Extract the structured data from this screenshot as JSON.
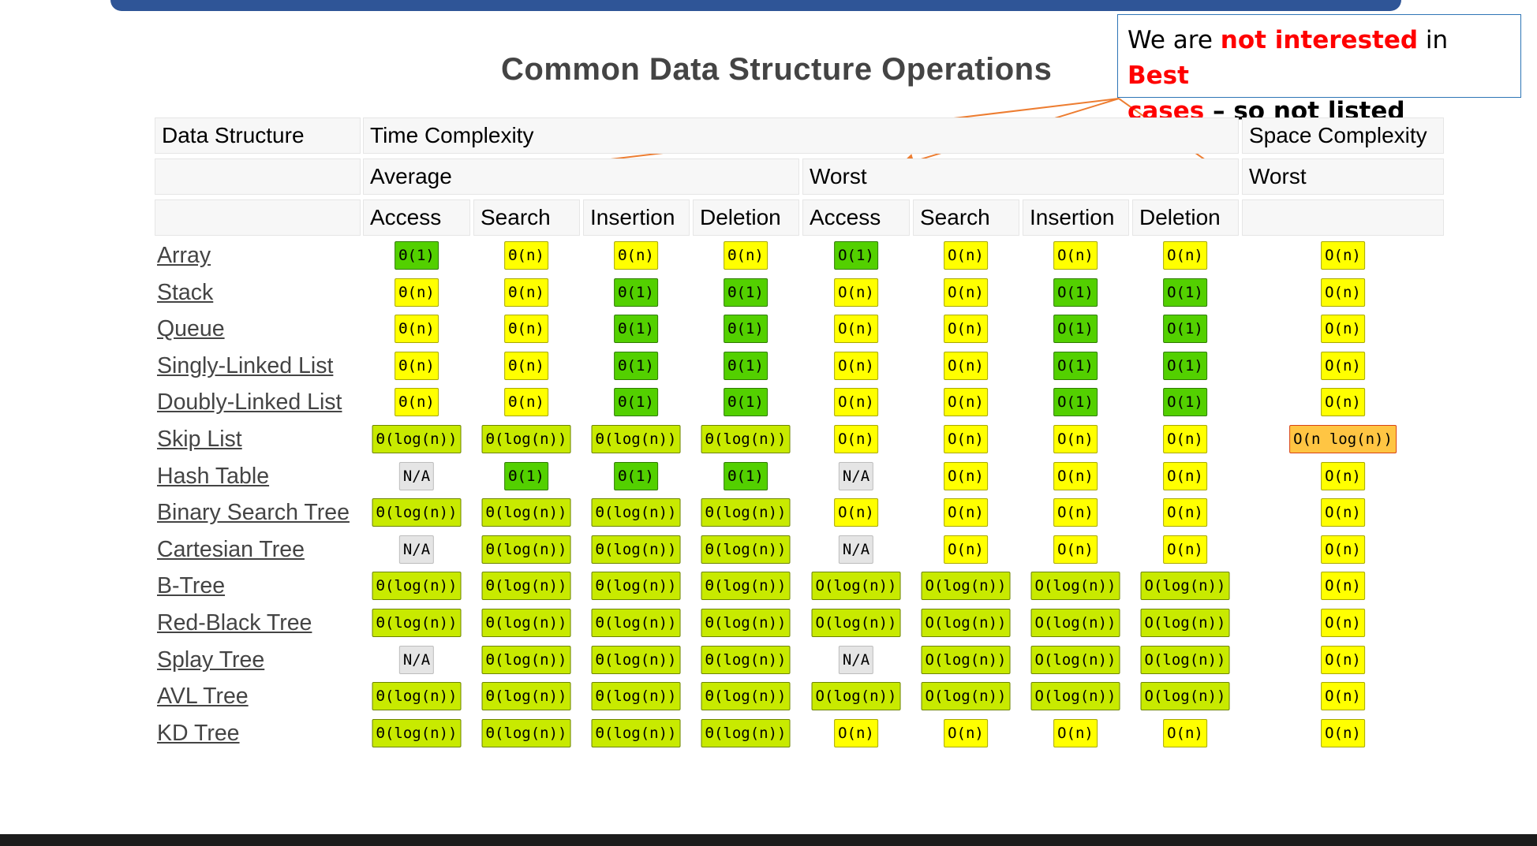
{
  "title": "Common Data Structure Operations",
  "callout": {
    "p1": "We are ",
    "p2": "not interested",
    "p3": " in ",
    "p4": "Best",
    "p5": "cases",
    "p6": " – so not listed"
  },
  "header": {
    "data_structure": "Data Structure",
    "time_complexity": "Time Complexity",
    "space_complexity": "Space Complexity",
    "average": "Average",
    "worst": "Worst",
    "space_worst": "Worst",
    "columns": [
      "Access",
      "Search",
      "Insertion",
      "Deletion",
      "Access",
      "Search",
      "Insertion",
      "Deletion"
    ]
  },
  "rows": [
    {
      "name": "Array",
      "cells": [
        [
          "Θ(1)",
          "green"
        ],
        [
          "Θ(n)",
          "yellow"
        ],
        [
          "Θ(n)",
          "yellow"
        ],
        [
          "Θ(n)",
          "yellow"
        ],
        [
          "O(1)",
          "green"
        ],
        [
          "O(n)",
          "yellow"
        ],
        [
          "O(n)",
          "yellow"
        ],
        [
          "O(n)",
          "yellow"
        ],
        [
          "O(n)",
          "yellow"
        ]
      ]
    },
    {
      "name": "Stack",
      "cells": [
        [
          "Θ(n)",
          "yellow"
        ],
        [
          "Θ(n)",
          "yellow"
        ],
        [
          "Θ(1)",
          "green"
        ],
        [
          "Θ(1)",
          "green"
        ],
        [
          "O(n)",
          "yellow"
        ],
        [
          "O(n)",
          "yellow"
        ],
        [
          "O(1)",
          "green"
        ],
        [
          "O(1)",
          "green"
        ],
        [
          "O(n)",
          "yellow"
        ]
      ]
    },
    {
      "name": "Queue",
      "cells": [
        [
          "Θ(n)",
          "yellow"
        ],
        [
          "Θ(n)",
          "yellow"
        ],
        [
          "Θ(1)",
          "green"
        ],
        [
          "Θ(1)",
          "green"
        ],
        [
          "O(n)",
          "yellow"
        ],
        [
          "O(n)",
          "yellow"
        ],
        [
          "O(1)",
          "green"
        ],
        [
          "O(1)",
          "green"
        ],
        [
          "O(n)",
          "yellow"
        ]
      ]
    },
    {
      "name": "Singly-Linked List",
      "cells": [
        [
          "Θ(n)",
          "yellow"
        ],
        [
          "Θ(n)",
          "yellow"
        ],
        [
          "Θ(1)",
          "green"
        ],
        [
          "Θ(1)",
          "green"
        ],
        [
          "O(n)",
          "yellow"
        ],
        [
          "O(n)",
          "yellow"
        ],
        [
          "O(1)",
          "green"
        ],
        [
          "O(1)",
          "green"
        ],
        [
          "O(n)",
          "yellow"
        ]
      ]
    },
    {
      "name": "Doubly-Linked List",
      "cells": [
        [
          "Θ(n)",
          "yellow"
        ],
        [
          "Θ(n)",
          "yellow"
        ],
        [
          "Θ(1)",
          "green"
        ],
        [
          "Θ(1)",
          "green"
        ],
        [
          "O(n)",
          "yellow"
        ],
        [
          "O(n)",
          "yellow"
        ],
        [
          "O(1)",
          "green"
        ],
        [
          "O(1)",
          "green"
        ],
        [
          "O(n)",
          "yellow"
        ]
      ]
    },
    {
      "name": "Skip List",
      "cells": [
        [
          "Θ(log(n))",
          "yg"
        ],
        [
          "Θ(log(n))",
          "yg"
        ],
        [
          "Θ(log(n))",
          "yg"
        ],
        [
          "Θ(log(n))",
          "yg"
        ],
        [
          "O(n)",
          "yellow"
        ],
        [
          "O(n)",
          "yellow"
        ],
        [
          "O(n)",
          "yellow"
        ],
        [
          "O(n)",
          "yellow"
        ],
        [
          "O(n log(n))",
          "orange"
        ]
      ]
    },
    {
      "name": "Hash Table",
      "cells": [
        [
          "N/A",
          "gray"
        ],
        [
          "Θ(1)",
          "green"
        ],
        [
          "Θ(1)",
          "green"
        ],
        [
          "Θ(1)",
          "green"
        ],
        [
          "N/A",
          "gray"
        ],
        [
          "O(n)",
          "yellow"
        ],
        [
          "O(n)",
          "yellow"
        ],
        [
          "O(n)",
          "yellow"
        ],
        [
          "O(n)",
          "yellow"
        ]
      ]
    },
    {
      "name": "Binary Search Tree",
      "cells": [
        [
          "Θ(log(n))",
          "yg"
        ],
        [
          "Θ(log(n))",
          "yg"
        ],
        [
          "Θ(log(n))",
          "yg"
        ],
        [
          "Θ(log(n))",
          "yg"
        ],
        [
          "O(n)",
          "yellow"
        ],
        [
          "O(n)",
          "yellow"
        ],
        [
          "O(n)",
          "yellow"
        ],
        [
          "O(n)",
          "yellow"
        ],
        [
          "O(n)",
          "yellow"
        ]
      ]
    },
    {
      "name": "Cartesian Tree",
      "cells": [
        [
          "N/A",
          "gray"
        ],
        [
          "Θ(log(n))",
          "yg"
        ],
        [
          "Θ(log(n))",
          "yg"
        ],
        [
          "Θ(log(n))",
          "yg"
        ],
        [
          "N/A",
          "gray"
        ],
        [
          "O(n)",
          "yellow"
        ],
        [
          "O(n)",
          "yellow"
        ],
        [
          "O(n)",
          "yellow"
        ],
        [
          "O(n)",
          "yellow"
        ]
      ]
    },
    {
      "name": "B-Tree",
      "cells": [
        [
          "Θ(log(n))",
          "yg"
        ],
        [
          "Θ(log(n))",
          "yg"
        ],
        [
          "Θ(log(n))",
          "yg"
        ],
        [
          "Θ(log(n))",
          "yg"
        ],
        [
          "O(log(n))",
          "yg"
        ],
        [
          "O(log(n))",
          "yg"
        ],
        [
          "O(log(n))",
          "yg"
        ],
        [
          "O(log(n))",
          "yg"
        ],
        [
          "O(n)",
          "yellow"
        ]
      ]
    },
    {
      "name": "Red-Black Tree",
      "cells": [
        [
          "Θ(log(n))",
          "yg"
        ],
        [
          "Θ(log(n))",
          "yg"
        ],
        [
          "Θ(log(n))",
          "yg"
        ],
        [
          "Θ(log(n))",
          "yg"
        ],
        [
          "O(log(n))",
          "yg"
        ],
        [
          "O(log(n))",
          "yg"
        ],
        [
          "O(log(n))",
          "yg"
        ],
        [
          "O(log(n))",
          "yg"
        ],
        [
          "O(n)",
          "yellow"
        ]
      ]
    },
    {
      "name": "Splay Tree",
      "cells": [
        [
          "N/A",
          "gray"
        ],
        [
          "Θ(log(n))",
          "yg"
        ],
        [
          "Θ(log(n))",
          "yg"
        ],
        [
          "Θ(log(n))",
          "yg"
        ],
        [
          "N/A",
          "gray"
        ],
        [
          "O(log(n))",
          "yg"
        ],
        [
          "O(log(n))",
          "yg"
        ],
        [
          "O(log(n))",
          "yg"
        ],
        [
          "O(n)",
          "yellow"
        ]
      ]
    },
    {
      "name": "AVL Tree",
      "cells": [
        [
          "Θ(log(n))",
          "yg"
        ],
        [
          "Θ(log(n))",
          "yg"
        ],
        [
          "Θ(log(n))",
          "yg"
        ],
        [
          "Θ(log(n))",
          "yg"
        ],
        [
          "O(log(n))",
          "yg"
        ],
        [
          "O(log(n))",
          "yg"
        ],
        [
          "O(log(n))",
          "yg"
        ],
        [
          "O(log(n))",
          "yg"
        ],
        [
          "O(n)",
          "yellow"
        ]
      ]
    },
    {
      "name": "KD Tree",
      "cells": [
        [
          "Θ(log(n))",
          "yg"
        ],
        [
          "Θ(log(n))",
          "yg"
        ],
        [
          "Θ(log(n))",
          "yg"
        ],
        [
          "Θ(log(n))",
          "yg"
        ],
        [
          "O(n)",
          "yellow"
        ],
        [
          "O(n)",
          "yellow"
        ],
        [
          "O(n)",
          "yellow"
        ],
        [
          "O(n)",
          "yellow"
        ],
        [
          "O(n)",
          "yellow"
        ]
      ]
    }
  ]
}
